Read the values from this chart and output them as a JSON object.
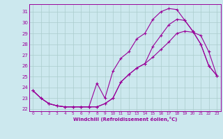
{
  "xlabel": "Windchill (Refroidissement éolien,°C)",
  "bg_color": "#cce8ee",
  "line_color": "#990099",
  "grid_color": "#aacccc",
  "xlim": [
    -0.5,
    23.5
  ],
  "ylim": [
    21.8,
    31.7
  ],
  "yticks": [
    22,
    23,
    24,
    25,
    26,
    27,
    28,
    29,
    30,
    31
  ],
  "xticks": [
    0,
    1,
    2,
    3,
    4,
    5,
    6,
    7,
    8,
    9,
    10,
    11,
    12,
    13,
    14,
    15,
    16,
    17,
    18,
    19,
    20,
    21,
    22,
    23
  ],
  "line1_x": [
    0,
    1,
    2,
    3,
    4,
    5,
    6,
    7,
    8,
    9,
    10,
    11,
    12,
    13,
    14,
    15,
    16,
    17,
    18,
    19,
    20,
    21,
    22,
    23
  ],
  "line1_y": [
    23.7,
    23.0,
    22.5,
    22.3,
    22.2,
    22.2,
    22.2,
    22.2,
    22.2,
    22.5,
    23.0,
    24.5,
    25.2,
    25.8,
    26.2,
    26.8,
    27.5,
    28.2,
    29.0,
    29.2,
    29.1,
    28.8,
    27.3,
    25.1
  ],
  "line2_x": [
    0,
    1,
    2,
    3,
    4,
    5,
    6,
    7,
    8,
    9,
    10,
    11,
    12,
    13,
    14,
    15,
    16,
    17,
    18,
    19,
    20,
    21,
    22,
    23
  ],
  "line2_y": [
    23.7,
    23.0,
    22.5,
    22.3,
    22.2,
    22.2,
    22.2,
    22.2,
    24.4,
    23.0,
    25.5,
    26.7,
    27.3,
    28.5,
    29.0,
    30.3,
    31.0,
    31.3,
    31.2,
    30.2,
    29.2,
    28.0,
    26.0,
    25.1
  ],
  "line3_x": [
    0,
    1,
    2,
    3,
    4,
    5,
    6,
    7,
    8,
    9,
    10,
    11,
    12,
    13,
    14,
    15,
    16,
    17,
    18,
    19,
    20,
    21,
    22,
    23
  ],
  "line3_y": [
    23.7,
    23.0,
    22.5,
    22.3,
    22.2,
    22.2,
    22.2,
    22.2,
    22.2,
    22.5,
    23.0,
    24.5,
    25.2,
    25.8,
    26.2,
    27.8,
    28.8,
    29.8,
    30.3,
    30.2,
    29.2,
    28.0,
    26.0,
    25.1
  ]
}
